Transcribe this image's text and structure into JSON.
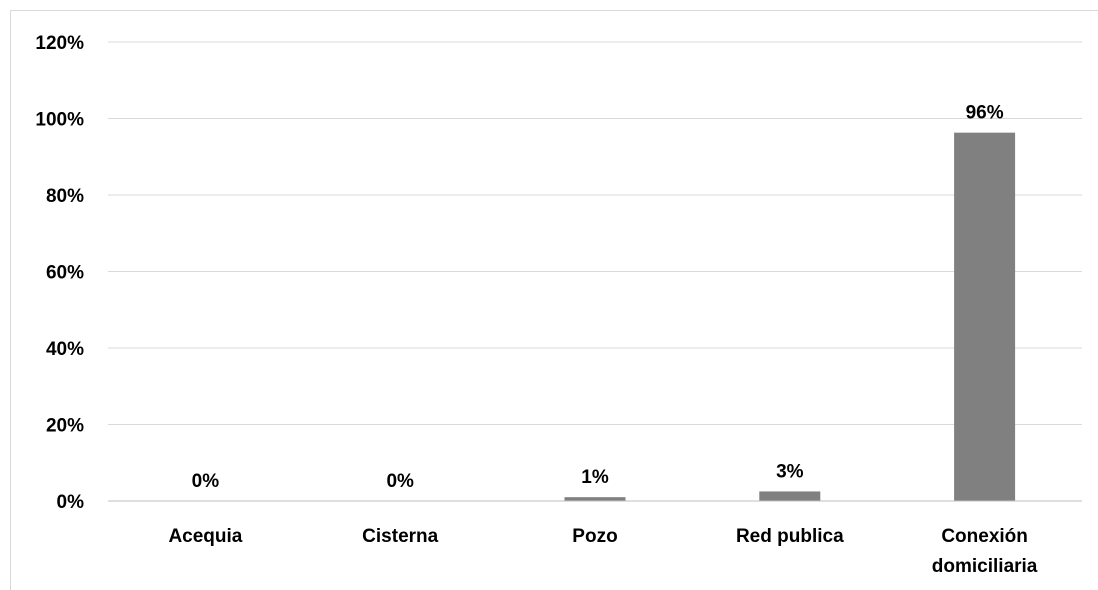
{
  "chart_data": {
    "type": "bar",
    "categories": [
      "Acequia",
      "Cisterna",
      "Pozo",
      "Red publica",
      "Conexión domiciliaria"
    ],
    "values": [
      0.0,
      0.0,
      1.0,
      2.5,
      96.3
    ],
    "data_labels": [
      "0%",
      "0%",
      "1%",
      "3%",
      "96%"
    ],
    "y_tick_labels": [
      "0%",
      "20%",
      "40%",
      "60%",
      "80%",
      "100%",
      "120%"
    ],
    "y_ticks": [
      0,
      20,
      40,
      60,
      80,
      100,
      120
    ],
    "ylim": [
      0,
      120
    ],
    "grid": true,
    "legend": "none",
    "title": "",
    "xlabel": "",
    "ylabel": ""
  },
  "colors": {
    "bar": "#808080",
    "grid": "#d9d9d9",
    "axis": "#bfbfbf",
    "text": "#000000"
  }
}
